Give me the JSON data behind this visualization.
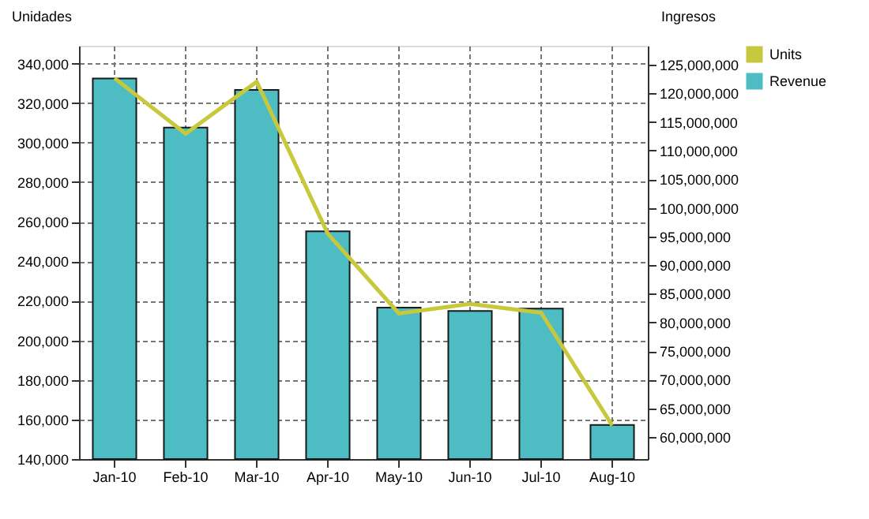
{
  "chart_data": {
    "type": "bar",
    "ylabel": "Unidades",
    "y2label": "Ingresos",
    "categories": [
      "Jan-10",
      "Feb-10",
      "Mar-10",
      "Apr-10",
      "May-10",
      "Jun-10",
      "Jul-10",
      "Aug-10"
    ],
    "series": [
      {
        "name": "Units",
        "type": "line",
        "axis": "y",
        "color": "#c8c83c",
        "values": [
          332600,
          304500,
          330800,
          253900,
          213600,
          218500,
          214000,
          157000
        ]
      },
      {
        "name": "Revenue",
        "axis": "y2",
        "color": "#4dbdc3",
        "values": [
          122600000,
          114000000,
          120600000,
          95900000,
          82600000,
          82000000,
          82400000,
          62100000
        ]
      }
    ],
    "ylim": [
      140000,
      349000
    ],
    "yticks": [
      {
        "value": 140000,
        "label": "140,000"
      },
      {
        "value": 160000,
        "label": "160,000"
      },
      {
        "value": 180000,
        "label": "180,000"
      },
      {
        "value": 200000,
        "label": "200,000"
      },
      {
        "value": 220000,
        "label": "220,000"
      },
      {
        "value": 240000,
        "label": "240,000"
      },
      {
        "value": 260000,
        "label": "260,000"
      },
      {
        "value": 280000,
        "label": "280,000"
      },
      {
        "value": 300000,
        "label": "300,000"
      },
      {
        "value": 320000,
        "label": "320,000"
      },
      {
        "value": 340000,
        "label": "340,000"
      }
    ],
    "y2lim": [
      56150000,
      128300000
    ],
    "y2ticks": [
      {
        "value": 60000000,
        "label": "60,000,000"
      },
      {
        "value": 65000000,
        "label": "65,000,000"
      },
      {
        "value": 70000000,
        "label": "70,000,000"
      },
      {
        "value": 75000000,
        "label": "75,000,000"
      },
      {
        "value": 80000000,
        "label": "80,000,000"
      },
      {
        "value": 85000000,
        "label": "85,000,000"
      },
      {
        "value": 90000000,
        "label": "90,000,000"
      },
      {
        "value": 95000000,
        "label": "95,000,000"
      },
      {
        "value": 100000000,
        "label": "100,000,000"
      },
      {
        "value": 105000000,
        "label": "105,000,000"
      },
      {
        "value": 110000000,
        "label": "110,000,000"
      },
      {
        "value": 115000000,
        "label": "115,000,000"
      },
      {
        "value": 120000000,
        "label": "120,000,000"
      },
      {
        "value": 125000000,
        "label": "125,000,000"
      }
    ],
    "grid": true,
    "legend": "top right",
    "line_style": "solid",
    "marker": "none"
  }
}
